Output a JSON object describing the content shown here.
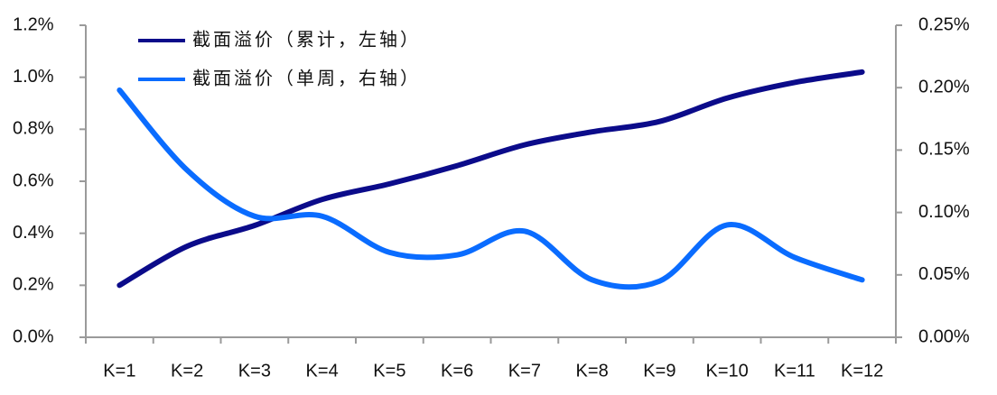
{
  "chart_data": {
    "type": "line",
    "categories": [
      "K=1",
      "K=2",
      "K=3",
      "K=4",
      "K=5",
      "K=6",
      "K=7",
      "K=8",
      "K=9",
      "K=10",
      "K=11",
      "K=12"
    ],
    "series": [
      {
        "name": "截面溢价（累计，左轴）",
        "color": "#0b0b8a",
        "values": [
          0.2,
          0.35,
          0.43,
          0.53,
          0.59,
          0.66,
          0.74,
          0.79,
          0.83,
          0.92,
          0.98,
          1.02
        ]
      },
      {
        "name": "截面溢价（单周，右轴）",
        "color": "#0a6cff",
        "axis": "y2",
        "values": [
          0.198,
          0.134,
          0.097,
          0.097,
          0.068,
          0.066,
          0.085,
          0.046,
          0.045,
          0.09,
          0.064,
          0.046
        ]
      }
    ],
    "ylim": [
      0,
      1.2
    ],
    "yticks": [
      {
        "value": 0,
        "label": "0.0%"
      },
      {
        "value": 0.2,
        "label": "0.2%"
      },
      {
        "value": 0.4,
        "label": "0.4%"
      },
      {
        "value": 0.6,
        "label": "0.6%"
      },
      {
        "value": 0.8,
        "label": "0.8%"
      },
      {
        "value": 1.0,
        "label": "1.0%"
      },
      {
        "value": 1.2,
        "label": "1.2%"
      }
    ],
    "y2lim": [
      0,
      0.25
    ],
    "y2ticks": [
      {
        "value": 0,
        "label": "0.00%"
      },
      {
        "value": 0.05,
        "label": "0.05%"
      },
      {
        "value": 0.1,
        "label": "0.10%"
      },
      {
        "value": 0.15,
        "label": "0.15%"
      },
      {
        "value": 0.2,
        "label": "0.20%"
      },
      {
        "value": 0.25,
        "label": "0.25%"
      }
    ],
    "legend": "top-left",
    "grid": false
  }
}
